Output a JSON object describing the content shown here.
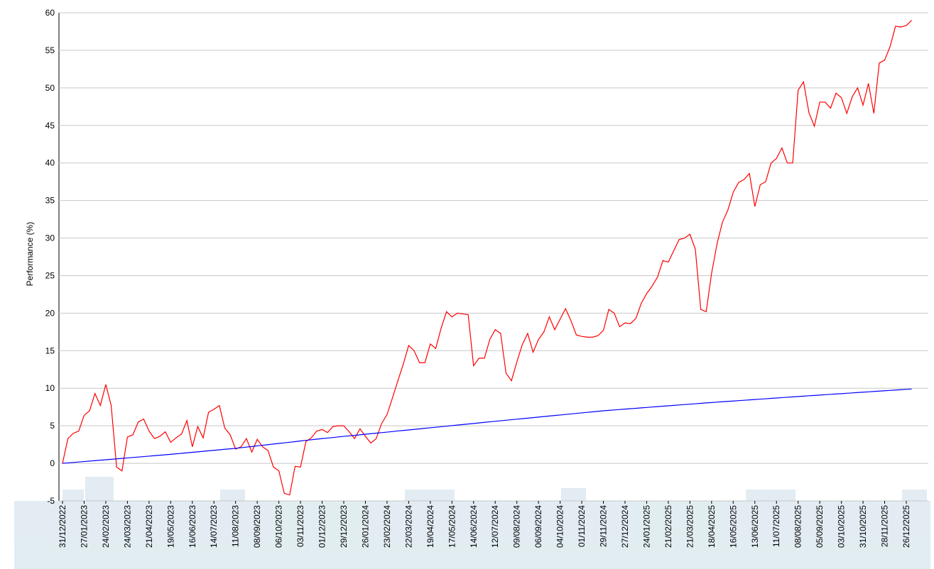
{
  "chart_data": {
    "type": "line",
    "y_label": "Performance (%)",
    "categories": [
      "31/12/2022",
      null,
      null,
      null,
      "27/01/2023",
      null,
      null,
      null,
      "24/02/2023",
      null,
      null,
      null,
      "24/03/2023",
      null,
      null,
      null,
      "21/04/2023",
      null,
      null,
      null,
      "19/05/2023",
      null,
      null,
      null,
      "16/06/2023",
      null,
      null,
      null,
      "14/07/2023",
      null,
      null,
      null,
      "11/08/2023",
      null,
      null,
      null,
      "08/09/2023",
      null,
      null,
      null,
      "06/10/2023",
      null,
      null,
      null,
      "03/11/2023",
      null,
      null,
      null,
      "01/12/2023",
      null,
      null,
      null,
      "29/12/2023",
      null,
      null,
      null,
      "26/01/2024",
      null,
      null,
      null,
      "23/02/2024",
      null,
      null,
      null,
      "22/03/2024",
      null,
      null,
      null,
      "19/04/2024",
      null,
      null,
      null,
      "17/05/2024",
      null,
      null,
      null,
      "14/06/2024",
      null,
      null,
      null,
      "12/07/2024",
      null,
      null,
      null,
      "09/08/2024",
      null,
      null,
      null,
      "06/09/2024",
      null,
      null,
      null,
      "04/10/2024",
      null,
      null,
      null,
      "01/11/2024",
      null,
      null,
      null,
      "29/11/2024",
      null,
      null,
      null,
      "27/12/2024",
      null,
      null,
      null,
      "24/01/2025",
      null,
      null,
      null,
      "21/02/2025",
      null,
      null,
      null,
      "21/03/2025",
      null,
      null,
      null,
      "18/04/2025",
      null,
      null,
      null,
      "16/05/2025",
      null,
      null,
      null,
      "13/06/2025",
      null,
      null,
      null,
      "11/07/2025",
      null,
      null,
      null,
      "08/08/2025",
      null,
      null,
      null,
      "05/09/2025",
      null,
      null,
      null,
      "03/10/2025",
      null,
      null,
      null,
      "31/10/2025",
      null,
      null,
      null,
      "28/11/2025",
      null,
      null,
      null,
      "26/12/2025",
      null
    ],
    "series": [
      {
        "color": "#ff0000",
        "values": [
          0,
          3.3,
          4.0,
          4.3,
          6.4,
          7.0,
          9.3,
          7.7,
          10.5,
          7.7,
          -0.5,
          -1.0,
          3.5,
          3.8,
          5.5,
          5.9,
          4.3,
          3.3,
          3.6,
          4.2,
          2.8,
          3.4,
          3.9,
          5.7,
          2.2,
          4.9,
          3.4,
          6.8,
          7.2,
          7.7,
          4.7,
          3.8,
          1.9,
          2.2,
          3.3,
          1.5,
          3.2,
          2.2,
          1.7,
          -0.5,
          -1.0,
          -4.0,
          -4.2,
          -0.4,
          -0.5,
          2.9,
          3.4,
          4.3,
          4.5,
          4.1,
          4.9,
          5.0,
          5.0,
          4.2,
          3.3,
          4.6,
          3.6,
          2.7,
          3.3,
          5.3,
          6.5,
          8.7,
          11.0,
          13.2,
          15.7,
          15.0,
          13.4,
          13.4,
          15.9,
          15.3,
          18.0,
          20.2,
          19.5,
          20.0,
          19.9,
          19.8,
          13.0,
          14.0,
          14.0,
          16.5,
          17.8,
          17.3,
          12.0,
          11.0,
          13.5,
          15.8,
          17.3,
          14.8,
          16.5,
          17.5,
          19.5,
          17.8,
          19.2,
          20.6,
          19.0,
          17.1,
          16.9,
          16.8,
          16.8,
          17.0,
          17.7,
          20.5,
          20.0,
          18.2,
          18.7,
          18.6,
          19.3,
          21.3,
          22.6,
          23.6,
          24.8,
          27.0,
          26.8,
          28.3,
          29.8,
          30.0,
          30.5,
          28.5,
          20.5,
          20.2,
          25.3,
          29.2,
          32.1,
          33.7,
          36.1,
          37.4,
          37.8,
          38.6,
          34.2,
          37.1,
          37.5,
          40.0,
          40.6,
          42.0,
          40.0,
          40.0,
          49.7,
          50.8,
          46.7,
          44.9,
          48.1,
          48.1,
          47.3,
          49.3,
          48.7,
          46.6,
          48.8,
          50.0,
          47.7,
          50.6,
          46.6,
          53.3,
          53.7,
          55.5,
          58.2,
          58.1,
          58.3,
          59.0
        ]
      },
      {
        "color": "#0000ff",
        "values": [
          0,
          0.06,
          0.12,
          0.18,
          0.24,
          0.3,
          0.36,
          0.42,
          0.48,
          0.54,
          0.6,
          0.66,
          0.72,
          0.78,
          0.84,
          0.9,
          0.96,
          1.02,
          1.08,
          1.14,
          1.2,
          1.27,
          1.33,
          1.4,
          1.47,
          1.53,
          1.6,
          1.67,
          1.73,
          1.8,
          1.87,
          1.93,
          2.0,
          2.08,
          2.16,
          2.24,
          2.33,
          2.41,
          2.49,
          2.57,
          2.65,
          2.73,
          2.81,
          2.89,
          2.98,
          3.06,
          3.14,
          3.22,
          3.3,
          3.37,
          3.44,
          3.52,
          3.59,
          3.66,
          3.73,
          3.8,
          3.88,
          3.95,
          4.02,
          4.09,
          4.16,
          4.23,
          4.31,
          4.38,
          4.45,
          4.52,
          4.59,
          4.67,
          4.74,
          4.81,
          4.88,
          4.95,
          5.03,
          5.1,
          5.17,
          5.24,
          5.31,
          5.38,
          5.46,
          5.53,
          5.6,
          5.67,
          5.74,
          5.81,
          5.88,
          5.95,
          6.02,
          6.09,
          6.16,
          6.23,
          6.3,
          6.37,
          6.44,
          6.51,
          6.58,
          6.65,
          6.72,
          6.79,
          6.86,
          6.93,
          7.0,
          7.06,
          7.11,
          7.17,
          7.22,
          7.28,
          7.33,
          7.39,
          7.44,
          7.5,
          7.55,
          7.61,
          7.66,
          7.72,
          7.77,
          7.83,
          7.88,
          7.94,
          7.99,
          8.05,
          8.1,
          8.15,
          8.2,
          8.25,
          8.3,
          8.35,
          8.4,
          8.45,
          8.5,
          8.55,
          8.6,
          8.65,
          8.7,
          8.75,
          8.8,
          8.85,
          8.9,
          8.95,
          9.0,
          9.04,
          9.09,
          9.14,
          9.19,
          9.24,
          9.28,
          9.33,
          9.38,
          9.43,
          9.48,
          9.52,
          9.57,
          9.62,
          9.67,
          9.71,
          9.76,
          9.81,
          9.86,
          9.9
        ]
      }
    ],
    "ylim": [
      -5,
      60
    ],
    "yticks": [
      -5,
      0,
      5,
      10,
      15,
      20,
      25,
      30,
      35,
      40,
      45,
      50,
      55,
      60
    ],
    "grid": true
  }
}
